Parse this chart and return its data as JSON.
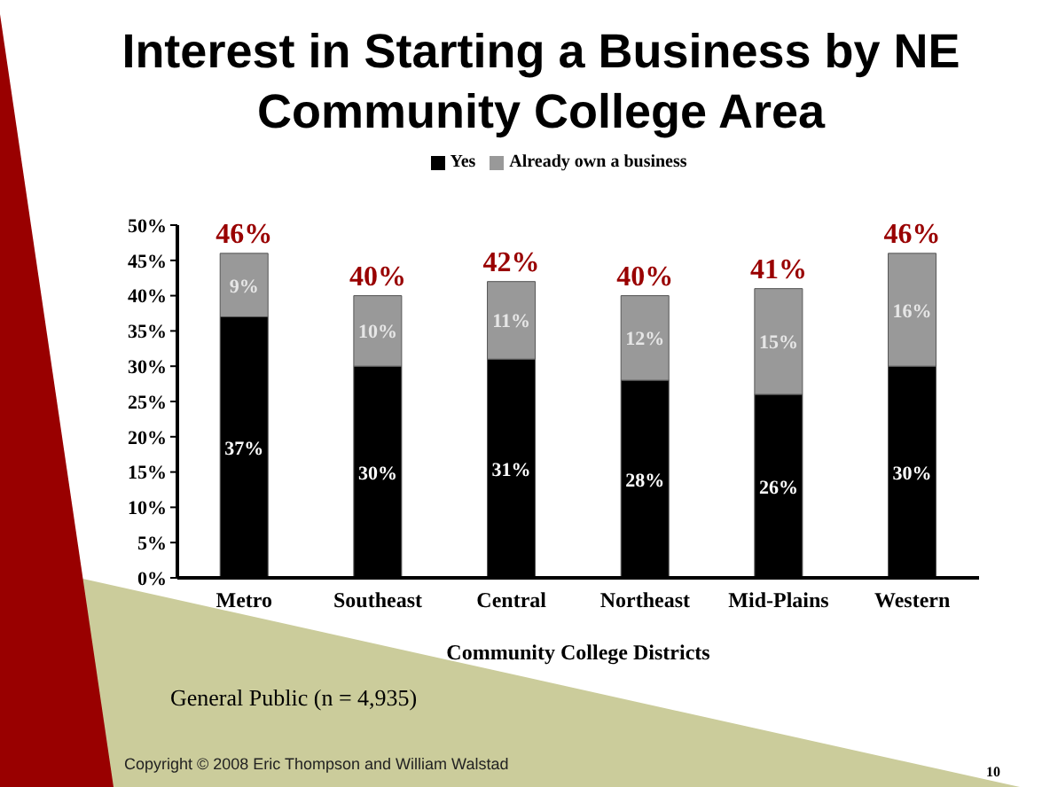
{
  "chart_data": {
    "type": "bar",
    "title": "Interest in Starting a Business by NE Community College Area",
    "xlabel": "Community College Districts",
    "categories": [
      "Metro",
      "Southeast",
      "Central",
      "Northeast",
      "Mid-Plains",
      "Western"
    ],
    "series": [
      {
        "name": "Yes",
        "color": "#000000",
        "values": [
          37,
          30,
          31,
          28,
          26,
          30
        ],
        "value_labels": [
          "37%",
          "30%",
          "31%",
          "28%",
          "26%",
          "30%"
        ]
      },
      {
        "name": "Already own a business",
        "color": "#999999",
        "values": [
          9,
          10,
          11,
          12,
          15,
          16
        ],
        "value_labels": [
          "9%",
          "10%",
          "11%",
          "12%",
          "15%",
          "16%"
        ]
      }
    ],
    "stacked": true,
    "totals": [
      "46%",
      "40%",
      "42%",
      "40%",
      "41%",
      "46%"
    ],
    "ylim": [
      0,
      50
    ],
    "yticks": [
      {
        "value": 0,
        "label": "0%"
      },
      {
        "value": 5,
        "label": "5%"
      },
      {
        "value": 10,
        "label": "10%"
      },
      {
        "value": 15,
        "label": "15%"
      },
      {
        "value": 20,
        "label": "20%"
      },
      {
        "value": 25,
        "label": "25%"
      },
      {
        "value": 30,
        "label": "30%"
      },
      {
        "value": 35,
        "label": "35%"
      },
      {
        "value": 40,
        "label": "40%"
      },
      {
        "value": 45,
        "label": "45%"
      },
      {
        "value": 50,
        "label": "50%"
      }
    ],
    "grid": false,
    "legend": "top",
    "annotations": [
      "General Public (n = 4,935)",
      "Copyright © 2008 Eric Thompson and William Walstad",
      "10"
    ]
  }
}
